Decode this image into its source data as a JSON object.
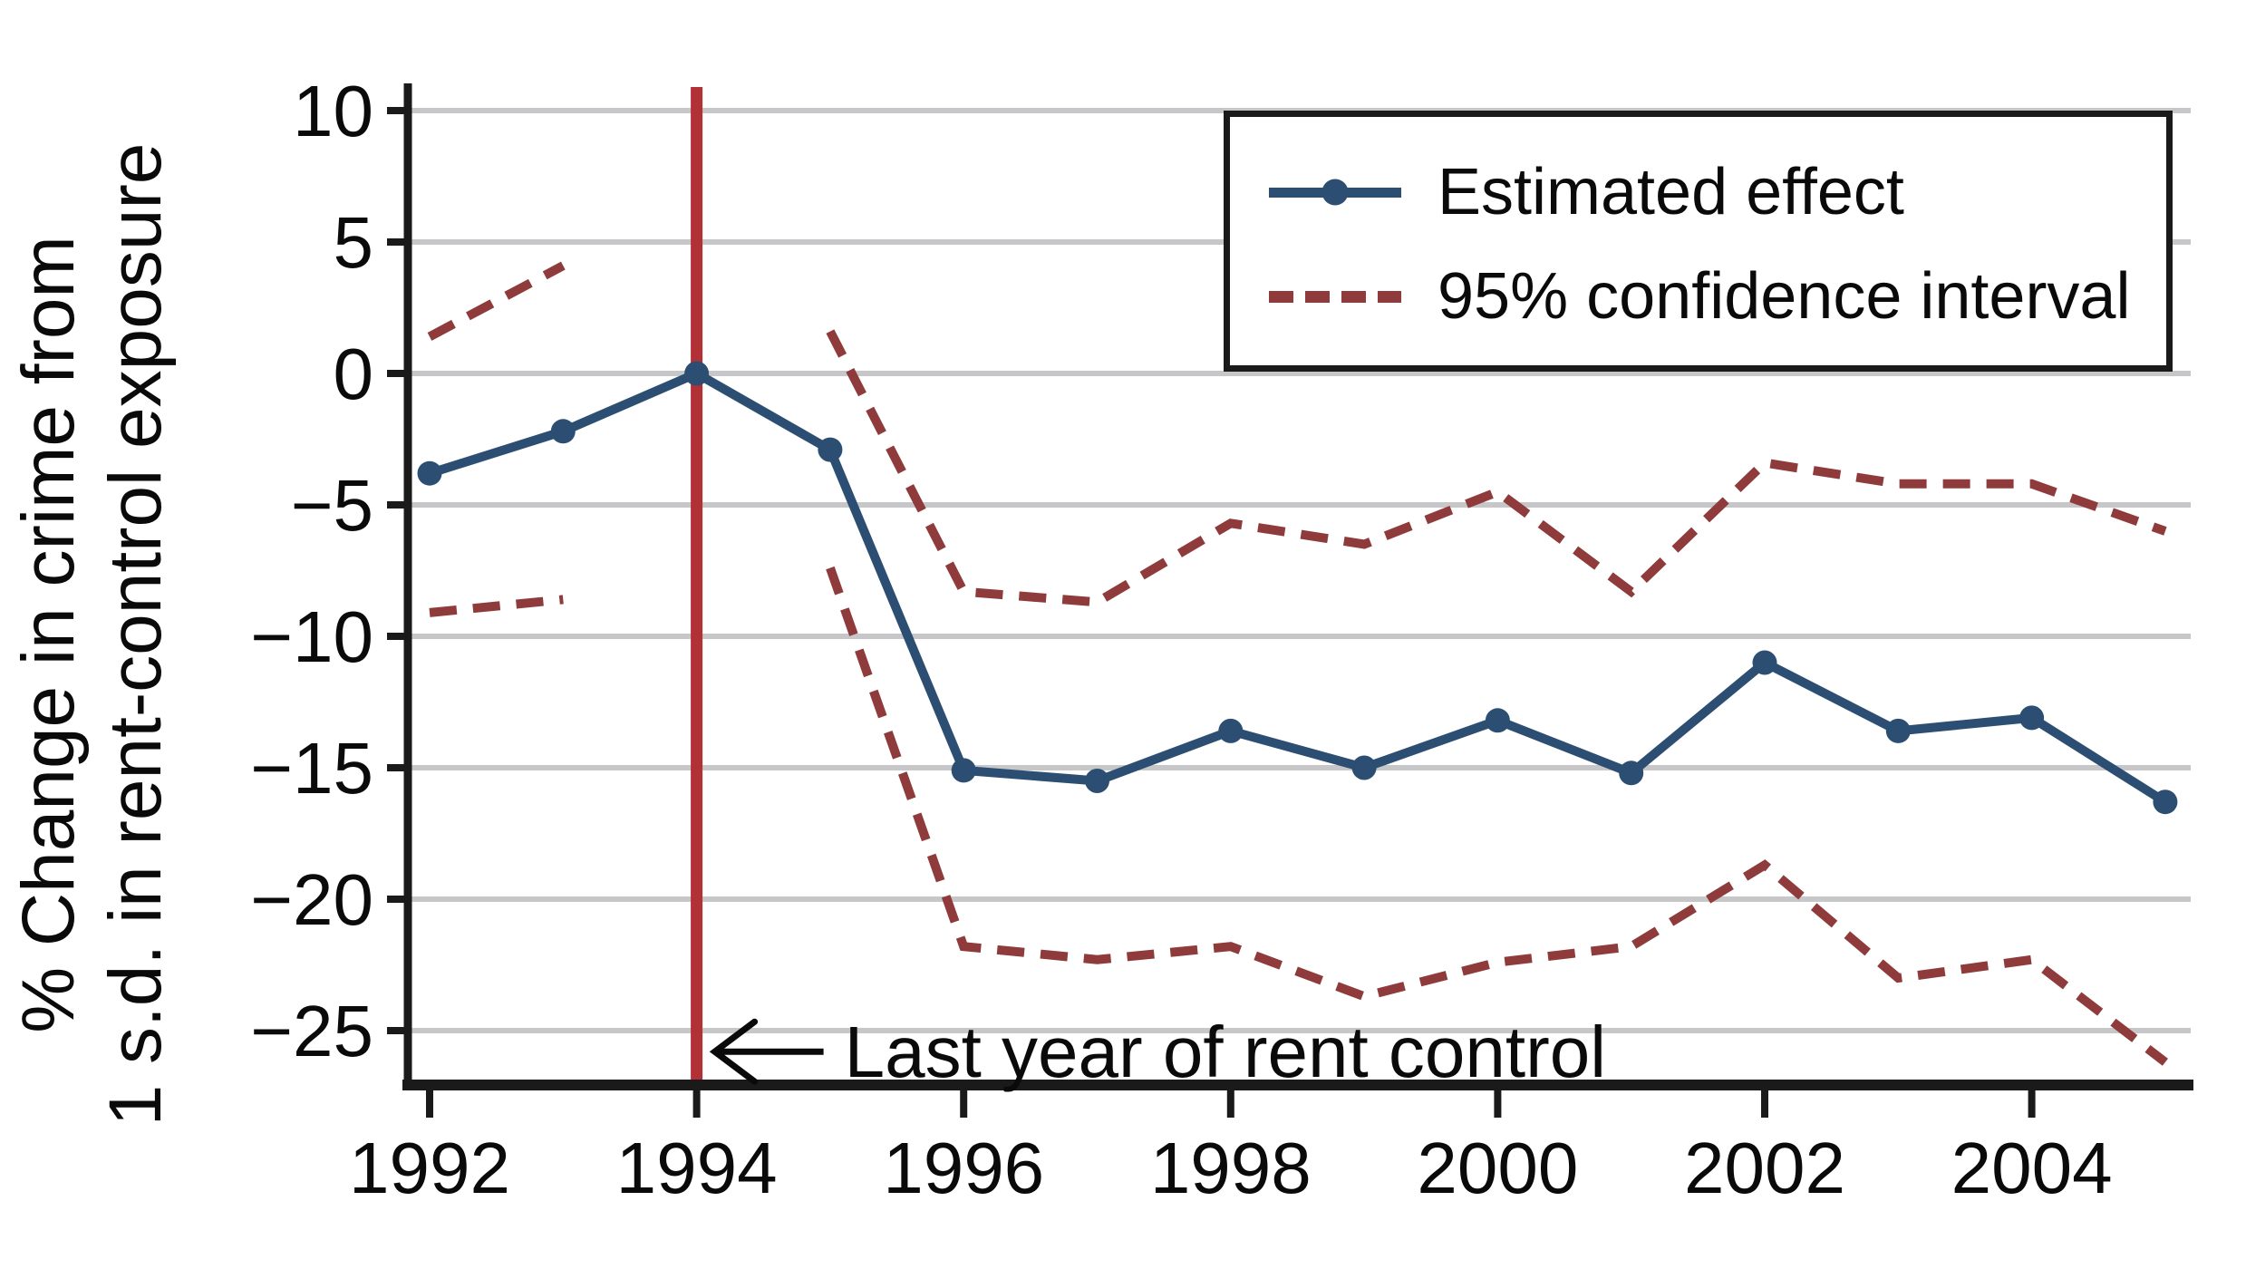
{
  "chart_data": {
    "type": "line",
    "title": "",
    "xlabel": "",
    "ylabel_line1": "% Change in crime from",
    "ylabel_line2": "1 s.d. in rent-control exposure",
    "xlim": [
      1991.8,
      2005.2
    ],
    "ylim": [
      -27.1,
      10.9
    ],
    "grid": "horizontal",
    "y_ticks": [
      {
        "value": 10,
        "label": "10"
      },
      {
        "value": 5,
        "label": "5"
      },
      {
        "value": 0,
        "label": "0"
      },
      {
        "value": -5,
        "label": "−5"
      },
      {
        "value": -10,
        "label": "−10"
      },
      {
        "value": -15,
        "label": "−15"
      },
      {
        "value": -20,
        "label": "−20"
      },
      {
        "value": -25,
        "label": "−25"
      }
    ],
    "x_ticks": [
      {
        "value": 1992,
        "label": "1992"
      },
      {
        "value": 1994,
        "label": "1994"
      },
      {
        "value": 1996,
        "label": "1996"
      },
      {
        "value": 1998,
        "label": "1998"
      },
      {
        "value": 2000,
        "label": "2000"
      },
      {
        "value": 2002,
        "label": "2002"
      },
      {
        "value": 2004,
        "label": "2004"
      }
    ],
    "series": [
      {
        "key": "ci-pre-upper-line",
        "name": "95% confidence interval (pre-period upper)",
        "style": "dashed",
        "color": "#8f3b3b",
        "x": [
          1992,
          1993
        ],
        "values": [
          1.4,
          4.1
        ]
      },
      {
        "key": "ci-pre-lower-line",
        "name": "95% confidence interval (pre-period lower)",
        "style": "dashed",
        "color": "#8f3b3b",
        "x": [
          1992,
          1993
        ],
        "values": [
          -9.1,
          -8.6
        ]
      },
      {
        "key": "ci-post-upper-line",
        "name": "95% confidence interval (post-period upper)",
        "style": "dashed",
        "color": "#8f3b3b",
        "x": [
          1995,
          1996,
          1997,
          1998,
          1999,
          2000,
          2001,
          2002,
          2003,
          2004,
          2005
        ],
        "values": [
          1.6,
          -8.3,
          -8.7,
          -5.7,
          -6.5,
          -4.5,
          -8.3,
          -3.4,
          -4.2,
          -4.2,
          -6.0
        ]
      },
      {
        "key": "ci-post-lower-line",
        "name": "95% confidence interval (post-period lower)",
        "style": "dashed",
        "color": "#8f3b3b",
        "x": [
          1995,
          1996,
          1997,
          1998,
          1999,
          2000,
          2001,
          2002,
          2003,
          2004,
          2005
        ],
        "values": [
          -7.4,
          -21.8,
          -22.3,
          -21.8,
          -23.7,
          -22.4,
          -21.8,
          -18.7,
          -23.0,
          -22.3,
          -26.2
        ]
      },
      {
        "key": "effect-line",
        "name": "Estimated effect",
        "style": "solid",
        "marker": "circle",
        "color": "#2b4e72",
        "x": [
          1992,
          1993,
          1994,
          1995,
          1996,
          1997,
          1998,
          1999,
          2000,
          2001,
          2002,
          2003,
          2004,
          2005
        ],
        "values": [
          -3.8,
          -2.2,
          0.0,
          -2.9,
          -15.1,
          -15.5,
          -13.6,
          -15.0,
          -13.2,
          -15.2,
          -11.0,
          -13.6,
          -13.1,
          -16.3
        ]
      }
    ],
    "event_line": {
      "x": 1994,
      "color": "#b23137"
    },
    "annotation": {
      "text": "Last year of rent control",
      "arrow_points_to_x": 1994,
      "y": -25.8
    },
    "legend": {
      "position": "top-right",
      "items": [
        {
          "label": "Estimated effect",
          "swatch": "solid-line-with-dot",
          "color": "#2b4e72"
        },
        {
          "label": "95% confidence interval",
          "swatch": "dashed-line",
          "color": "#8f3b3b"
        }
      ]
    },
    "colors": {
      "effect": "#2b4e72",
      "ci": "#8f3b3b",
      "event_line": "#b23137",
      "grid": "#c7c7c9",
      "axis": "#1a1a1a",
      "text": "#0a0a0a"
    }
  }
}
